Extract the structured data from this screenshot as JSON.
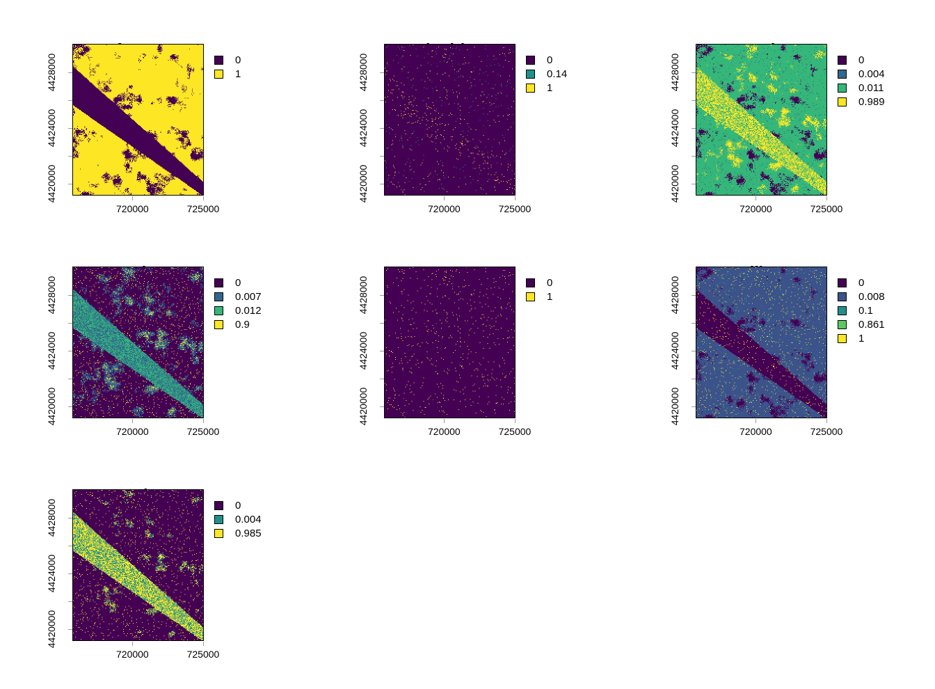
{
  "chart_data": {
    "type": "heatmap",
    "xlim": [
      715750,
      725050
    ],
    "ylim": [
      4419150,
      4430050
    ],
    "x_ticks": [
      "720000",
      "725000"
    ],
    "y_ticks": [
      "4420000",
      "4424000",
      "4428000"
    ],
    "legend_position": "right",
    "panels": [
      {
        "title": "forest",
        "categories": [
          "0",
          "1"
        ],
        "colors": [
          "#440154",
          "#FDE725"
        ]
      },
      {
        "title": "hydric",
        "categories": [
          "0",
          "0.14",
          "1"
        ],
        "colors": [
          "#440154",
          "#21908C",
          "#FDE725"
        ]
      },
      {
        "title": "mesic",
        "categories": [
          "0",
          "0.004",
          "0.011",
          "0.989"
        ],
        "colors": [
          "#440154",
          "#31688E",
          "#35B779",
          "#FDE725"
        ]
      },
      {
        "title": "rocky",
        "categories": [
          "0",
          "0.007",
          "0.012",
          "0.9"
        ],
        "colors": [
          "#440154",
          "#31688E",
          "#35B779",
          "#FDE725"
        ]
      },
      {
        "title": "water",
        "categories": [
          "0",
          "1"
        ],
        "colors": [
          "#440154",
          "#FDE725"
        ]
      },
      {
        "title": "willow",
        "categories": [
          "0",
          "0.008",
          "0.1",
          "0.861",
          "1"
        ],
        "colors": [
          "#440154",
          "#3B528B",
          "#21908C",
          "#5DC863",
          "#FDE725"
        ]
      },
      {
        "title": "xeric",
        "categories": [
          "0",
          "0.004",
          "0.985"
        ],
        "colors": [
          "#440154",
          "#21908C",
          "#FDE725"
        ]
      }
    ]
  }
}
